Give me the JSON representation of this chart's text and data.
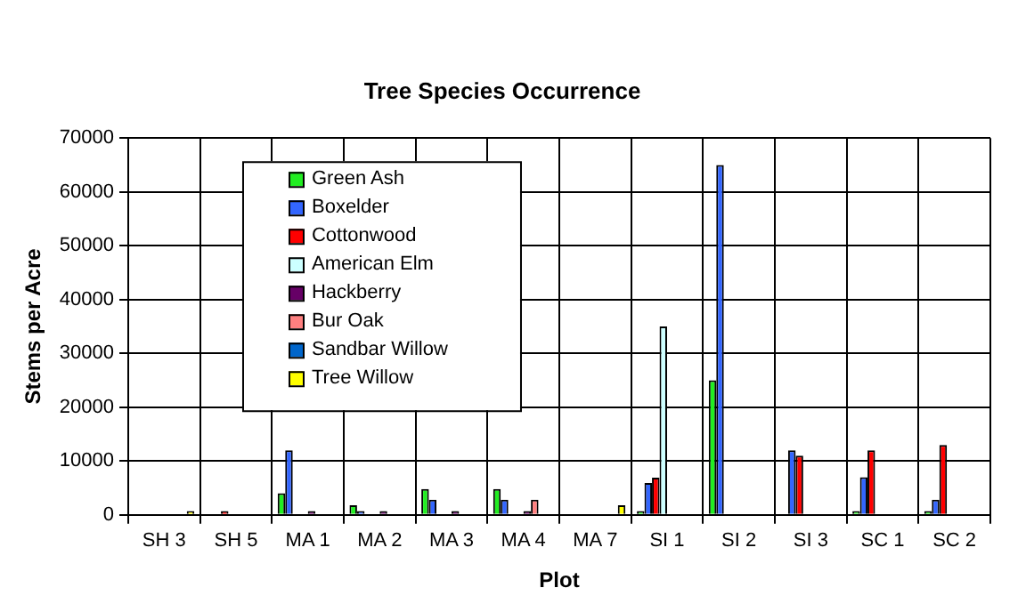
{
  "chart_data": {
    "type": "bar",
    "title": "Tree Species Occurrence",
    "xlabel": "Plot",
    "ylabel": "Stems per Acre",
    "categories": [
      "SH 3",
      "SH 5",
      "MA 1",
      "MA 2",
      "MA 3",
      "MA 4",
      "MA 7",
      "SI 1",
      "SI 2",
      "SI 3",
      "SC 1",
      "SC 2"
    ],
    "series": [
      {
        "name": "Green Ash",
        "color": "#22ee22",
        "values": [
          null,
          null,
          4000,
          1800,
          4800,
          4800,
          null,
          700,
          25000,
          null,
          700,
          700
        ]
      },
      {
        "name": "Boxelder",
        "color": "#3366ff",
        "values": [
          null,
          null,
          12000,
          700,
          2800,
          2800,
          null,
          5900,
          65000,
          12000,
          7000,
          2800
        ]
      },
      {
        "name": "Cottonwood",
        "color": "#ff0000",
        "values": [
          null,
          700,
          null,
          null,
          null,
          null,
          null,
          6900,
          null,
          11000,
          12000,
          13000
        ]
      },
      {
        "name": "American Elm",
        "color": "#ccffff",
        "values": [
          null,
          null,
          null,
          null,
          null,
          null,
          null,
          35000,
          null,
          null,
          null,
          null
        ]
      },
      {
        "name": "Hackberry",
        "color": "#660066",
        "values": [
          null,
          null,
          700,
          700,
          700,
          700,
          null,
          null,
          null,
          null,
          null,
          null
        ]
      },
      {
        "name": "Bur Oak",
        "color": "#ff8080",
        "values": [
          null,
          null,
          null,
          null,
          null,
          2800,
          null,
          null,
          null,
          null,
          null,
          null
        ]
      },
      {
        "name": "Sandbar Willow",
        "color": "#0066cc",
        "values": [
          null,
          null,
          null,
          null,
          null,
          null,
          null,
          null,
          null,
          null,
          null,
          null
        ]
      },
      {
        "name": "Tree Willow",
        "color": "#ffff00",
        "values": [
          700,
          null,
          null,
          null,
          null,
          null,
          1800,
          null,
          null,
          null,
          null,
          null
        ]
      }
    ],
    "ylim": [
      0,
      70000
    ],
    "yticks": [
      0,
      10000,
      20000,
      30000,
      40000,
      50000,
      60000,
      70000
    ],
    "grid": true,
    "legend": "top left"
  }
}
